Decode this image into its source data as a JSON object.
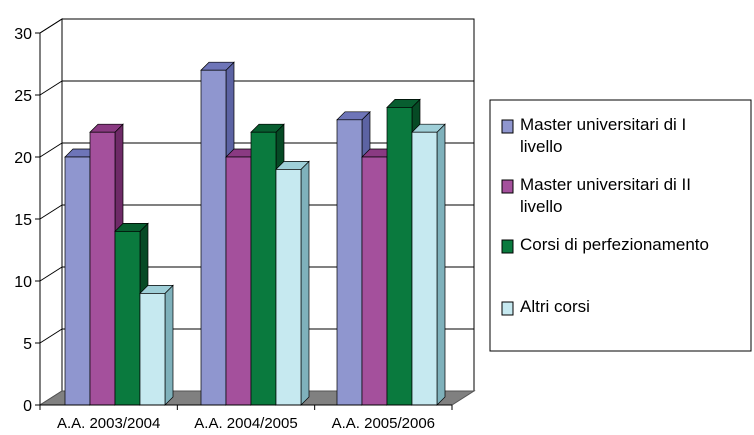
{
  "chart_data": {
    "type": "bar",
    "style": "3d-clustered-column",
    "title": "",
    "xlabel": "",
    "ylabel": "",
    "categories": [
      "A.A. 2003/2004",
      "A.A. 2004/2005",
      "A.A. 2005/2006"
    ],
    "series": [
      {
        "name": "Master universitari di I livello",
        "values": [
          20,
          27,
          23
        ],
        "color": "#8f96cf",
        "side_color": "#5c63a3",
        "top_color": "#6e75b8"
      },
      {
        "name": "Master universitari di II livello",
        "values": [
          22,
          20,
          20
        ],
        "color": "#a4509c",
        "side_color": "#6e2a67",
        "top_color": "#8a3a82"
      },
      {
        "name": "Corsi di perfezionamento",
        "values": [
          14,
          22,
          24
        ],
        "color": "#0a7a3e",
        "side_color": "#064a25",
        "top_color": "#085e30"
      },
      {
        "name": "Altri corsi",
        "values": [
          9,
          19,
          22
        ],
        "color": "#c6e9f0",
        "side_color": "#7fb1bb",
        "top_color": "#9fcfd8"
      }
    ],
    "ylim": [
      0,
      30
    ],
    "yticks": [
      "0",
      "5",
      "10",
      "15",
      "20",
      "25",
      "30"
    ],
    "grid": true,
    "legend_position": "right",
    "legend": [
      {
        "lines": [
          "Master universitari di I",
          "livello"
        ]
      },
      {
        "lines": [
          "Master universitari di II",
          "livello"
        ]
      },
      {
        "lines": [
          "Corsi di perfezionamento"
        ]
      },
      {
        "lines": [
          "Altri corsi"
        ]
      }
    ],
    "colors": {
      "wall": "#ffffff",
      "floor": "#808080",
      "gridline": "#000000"
    }
  }
}
